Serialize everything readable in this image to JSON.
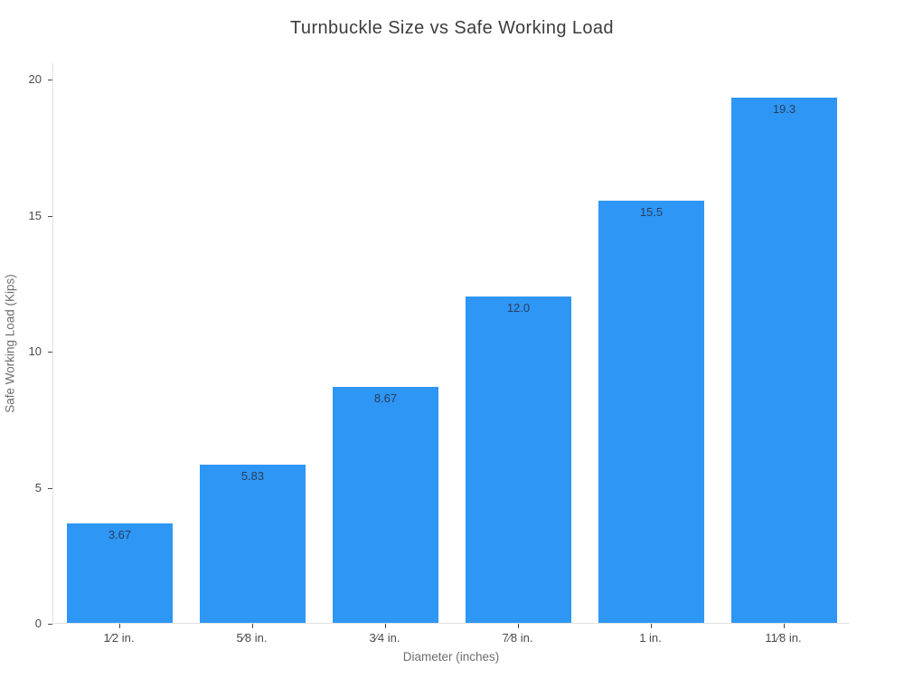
{
  "chart_data": {
    "type": "bar",
    "title": "Turnbuckle Size vs Safe Working Load",
    "xlabel": "Diameter (inches)",
    "ylabel": "Safe Working Load (Kips)",
    "categories": [
      "1⁄2 in.",
      "5⁄8 in.",
      "3⁄4 in.",
      "7⁄8 in.",
      "1 in.",
      "11⁄8 in."
    ],
    "values": [
      3.67,
      5.83,
      8.67,
      12.0,
      15.5,
      19.3
    ],
    "values_display": [
      "3.67",
      "5.83",
      "8.67",
      "12.0",
      "15.5",
      "19.3"
    ],
    "ylim": [
      0,
      20
    ],
    "yticks": [
      0,
      5,
      10,
      15,
      20
    ],
    "grid": false,
    "legend": "none",
    "value_label_position": "inside-top",
    "colors": {
      "bar_fill": "#2E96F5",
      "value_label": "#2a3f5f",
      "title_text": "#3d3d3d",
      "tick_text": "#4a4a4a",
      "axis_title_text": "#6e6e6e",
      "axis_line": "#e2e2e2",
      "background": "#ffffff"
    }
  }
}
